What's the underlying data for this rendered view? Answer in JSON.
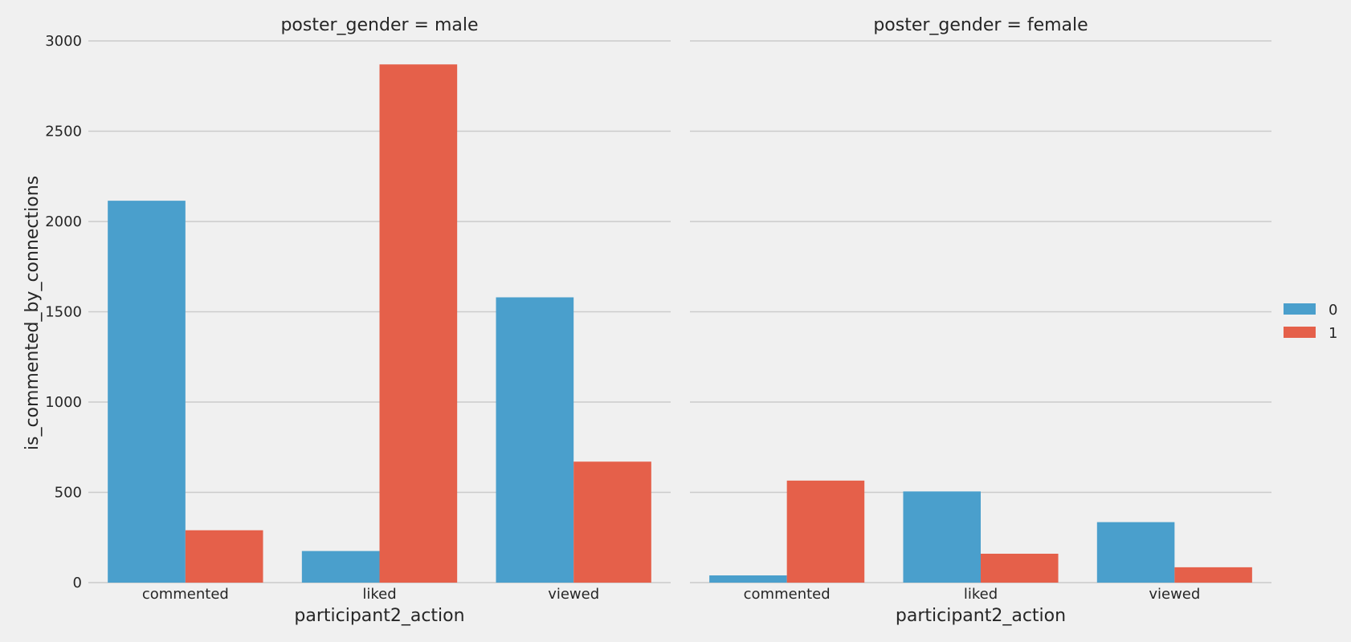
{
  "chart_data": {
    "type": "bar",
    "ylabel": "is_commented_by_connections",
    "xlabel": "participant2_action",
    "ylim": [
      0,
      3000
    ],
    "yticks": [
      0,
      500,
      1000,
      1500,
      2000,
      2500,
      3000
    ],
    "categories": [
      "commented",
      "liked",
      "viewed"
    ],
    "legend": {
      "placement": "right",
      "entries": [
        {
          "label": "0",
          "color": "#4a9fcc"
        },
        {
          "label": "1",
          "color": "#e5604a"
        }
      ]
    },
    "facets": [
      {
        "title": "poster_gender = male",
        "series": [
          {
            "name": "0",
            "values": [
              2115,
              175,
              1580
            ]
          },
          {
            "name": "1",
            "values": [
              290,
              2870,
              670
            ]
          }
        ]
      },
      {
        "title": "poster_gender = female",
        "series": [
          {
            "name": "0",
            "values": [
              40,
              505,
              335
            ]
          },
          {
            "name": "1",
            "values": [
              565,
              160,
              85
            ]
          }
        ]
      }
    ]
  }
}
